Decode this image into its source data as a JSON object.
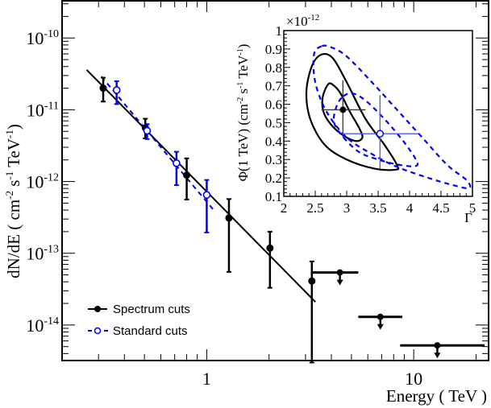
{
  "chart_data": [
    {
      "type": "scatter",
      "title": "",
      "xlabel": "Energy ( TeV )",
      "ylabel": "dN/dE ( cm-2 s-1 TeV-1 )",
      "ylabel_parts": {
        "base": "dN/dE  ( cm",
        "e1": "-2",
        "mid": " s",
        "e2": "-1",
        "mid2": " TeV",
        "e3": "-1",
        "end": ")"
      },
      "xscale": "log",
      "yscale": "log",
      "xlim": [
        0.2,
        23
      ],
      "ylim": [
        3.2e-15,
        3.3e-10
      ],
      "x_ticks": [
        {
          "value": 1,
          "label": "1"
        },
        {
          "value": 10,
          "label": "10"
        }
      ],
      "y_ticks": [
        {
          "value": 1e-10,
          "base": "10",
          "exp": "-10"
        },
        {
          "value": 1e-11,
          "base": "10",
          "exp": "-11"
        },
        {
          "value": 1e-12,
          "base": "10",
          "exp": "-12"
        },
        {
          "value": 1e-13,
          "base": "10",
          "exp": "-13"
        },
        {
          "value": 1e-14,
          "base": "10",
          "exp": "-14"
        }
      ],
      "series": [
        {
          "name": "Spectrum cuts",
          "color": "#000000",
          "marker": "filled-circle",
          "points": [
            {
              "x": 0.316,
              "y": 2e-11,
              "ylo": 1.3e-11,
              "yhi": 2.8e-11
            },
            {
              "x": 0.505,
              "y": 5.6e-12,
              "ylo": 4e-12,
              "yhi": 7.5e-12
            },
            {
              "x": 0.8,
              "y": 1.23e-12,
              "ylo": 5.6e-13,
              "yhi": 2.1e-12
            },
            {
              "x": 1.28,
              "y": 3.1e-13,
              "ylo": 5.5e-14,
              "yhi": 5.7e-13
            },
            {
              "x": 2.02,
              "y": 1.18e-13,
              "ylo": 3.3e-14,
              "yhi": 2e-13
            },
            {
              "x": 3.22,
              "y": 4.1e-14,
              "ylo": 3e-15,
              "yhi": 7.7e-14
            }
          ],
          "upper_limits": [
            {
              "x": 4.4,
              "xlo": 3.2,
              "xhi": 5.4,
              "y": 5.4e-14
            },
            {
              "x": 6.9,
              "xlo": 5.4,
              "xhi": 8.8,
              "y": 1.3e-14
            },
            {
              "x": 13.0,
              "xlo": 8.6,
              "xhi": 22.0,
              "y": 5.2e-15
            }
          ],
          "fit": {
            "x": [
              0.263,
              3.35
            ],
            "y": [
              3.6e-11,
              2.1e-14
            ]
          }
        },
        {
          "name": "Standard cuts",
          "color": "#0000ff",
          "marker": "open-circle",
          "points": [
            {
              "x": 0.367,
              "y": 1.88e-11,
              "ylo": 1.2e-11,
              "yhi": 2.5e-11
            },
            {
              "x": 0.515,
              "y": 5.1e-12,
              "ylo": 3.9e-12,
              "yhi": 6.3e-12
            },
            {
              "x": 0.714,
              "y": 1.8e-12,
              "ylo": 8.9e-13,
              "yhi": 2.6e-12
            },
            {
              "x": 1.0,
              "y": 6.5e-13,
              "ylo": 1.95e-13,
              "yhi": 1.05e-12
            }
          ],
          "fit": {
            "x": [
              0.31,
              1.08
            ],
            "y": [
              2.9e-11,
              4e-13
            ]
          }
        }
      ],
      "legend": {
        "position": "bottom-left",
        "entries": [
          "Spectrum cuts",
          "Standard cuts"
        ]
      },
      "grid": false
    },
    {
      "type": "scatter",
      "title": "",
      "xlabel": "Γ",
      "ylabel": "Φ(1 TeV) (cm-2 s-1 TeV-1)",
      "ylabel_parts": {
        "base": "Φ(1 TeV) (cm",
        "e1": "-2",
        "mid": " s",
        "e2": "-1",
        "mid2": " TeV",
        "e3": "-1",
        "end": ")"
      },
      "multiplier": {
        "base": "×10",
        "exp": "-12"
      },
      "xlim": [
        2,
        5
      ],
      "ylim": [
        0.1,
        1
      ],
      "x_ticks": [
        "2",
        "2.5",
        "3",
        "3.5",
        "4",
        "4.5",
        "5"
      ],
      "x_tick_values": [
        2,
        2.5,
        3,
        3.5,
        4,
        4.5,
        5
      ],
      "y_ticks": [
        "0.1",
        "0.2",
        "0.3",
        "0.4",
        "0.5",
        "0.6",
        "0.7",
        "0.8",
        "0.9",
        "1"
      ],
      "y_tick_values": [
        0.1,
        0.2,
        0.3,
        0.4,
        0.5,
        0.6,
        0.7,
        0.8,
        0.9,
        1.0
      ],
      "points": [
        {
          "name": "Spectrum cuts",
          "color": "#000000",
          "marker": "filled-circle",
          "x": 2.94,
          "y": 0.57,
          "xlo": 2.6,
          "xhi": 3.3,
          "ylo": 0.42,
          "yhi": 0.73
        },
        {
          "name": "Standard cuts",
          "color": "#0000ff",
          "marker": "open-circle",
          "x": 3.53,
          "y": 0.44,
          "xlo": 2.93,
          "xhi": 4.14,
          "ylo": 0.25,
          "yhi": 0.65
        }
      ],
      "contours": [
        {
          "name": "Spectrum cuts 1σ",
          "color": "#000000",
          "style": "solid",
          "points": [
            [
              2.71,
              0.71
            ],
            [
              2.62,
              0.64
            ],
            [
              2.63,
              0.56
            ],
            [
              2.75,
              0.49
            ],
            [
              2.95,
              0.43
            ],
            [
              3.15,
              0.4
            ],
            [
              3.25,
              0.42
            ],
            [
              3.2,
              0.47
            ],
            [
              3.05,
              0.56
            ],
            [
              2.9,
              0.66
            ],
            [
              2.8,
              0.7
            ]
          ]
        },
        {
          "name": "Spectrum cuts 2σ",
          "color": "#000000",
          "style": "solid",
          "points": [
            [
              2.6,
              0.87
            ],
            [
              2.45,
              0.81
            ],
            [
              2.36,
              0.67
            ],
            [
              2.42,
              0.52
            ],
            [
              2.65,
              0.38
            ],
            [
              3.0,
              0.3
            ],
            [
              3.45,
              0.25
            ],
            [
              3.78,
              0.245
            ],
            [
              3.8,
              0.27
            ],
            [
              3.6,
              0.38
            ],
            [
              3.3,
              0.52
            ],
            [
              3.0,
              0.72
            ],
            [
              2.78,
              0.85
            ]
          ]
        },
        {
          "name": "Standard cuts 1σ",
          "color": "#0000ff",
          "style": "dashed",
          "points": [
            [
              2.92,
              0.635
            ],
            [
              2.83,
              0.58
            ],
            [
              2.8,
              0.5
            ],
            [
              2.95,
              0.42
            ],
            [
              3.2,
              0.34
            ],
            [
              3.5,
              0.3
            ],
            [
              3.85,
              0.27
            ],
            [
              4.1,
              0.265
            ],
            [
              4.1,
              0.3
            ],
            [
              3.9,
              0.4
            ],
            [
              3.6,
              0.52
            ],
            [
              3.3,
              0.62
            ],
            [
              3.08,
              0.66
            ]
          ]
        },
        {
          "name": "Standard cuts 2σ",
          "color": "#0000ff",
          "style": "dashed",
          "points": [
            [
              2.6,
              0.915
            ],
            [
              2.48,
              0.87
            ],
            [
              2.5,
              0.72
            ],
            [
              2.68,
              0.56
            ],
            [
              3.0,
              0.42
            ],
            [
              3.4,
              0.33
            ],
            [
              3.8,
              0.26
            ],
            [
              4.3,
              0.2
            ],
            [
              4.7,
              0.16
            ],
            [
              4.95,
              0.145
            ],
            [
              4.9,
              0.19
            ],
            [
              4.6,
              0.27
            ],
            [
              4.2,
              0.42
            ],
            [
              3.8,
              0.57
            ],
            [
              3.4,
              0.72
            ],
            [
              3.0,
              0.86
            ],
            [
              2.75,
              0.91
            ]
          ]
        }
      ]
    }
  ]
}
